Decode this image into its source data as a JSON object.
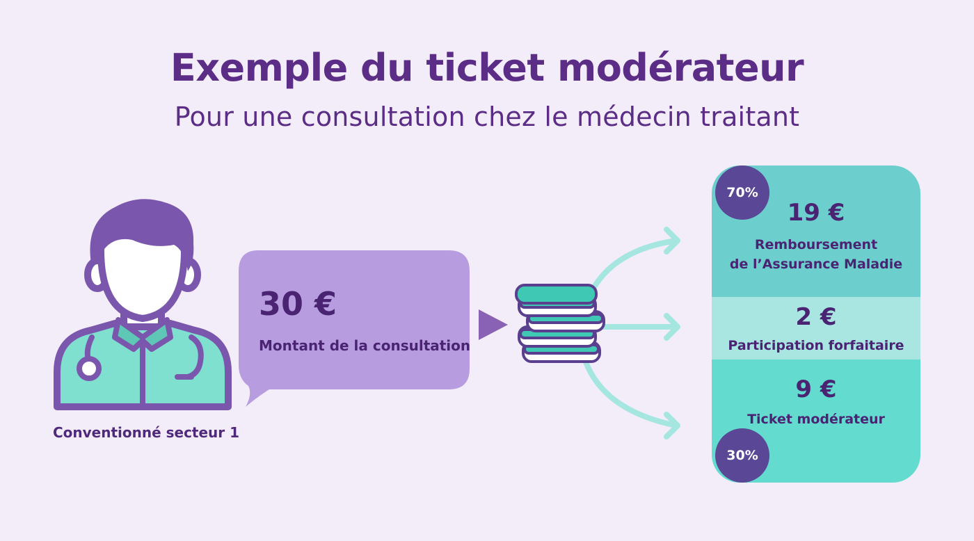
{
  "header": {
    "title": "Exemple du ticket modérateur",
    "subtitle": "Pour une consultation chez le médecin traitant"
  },
  "doctor": {
    "caption": "Conventionné secteur  1"
  },
  "consultation": {
    "amount": "30 €",
    "label": "Montant de la consultation"
  },
  "breakdown": {
    "reimbursement": {
      "percent": "70%",
      "amount": "19 €",
      "label_line1": "Remboursement",
      "label_line2": "de l’Assurance Maladie"
    },
    "flat_fee": {
      "amount": "2 €",
      "label": "Participation forfaitaire"
    },
    "ticket": {
      "amount": "9 €",
      "label": "Ticket modérateur",
      "percent": "30%"
    }
  },
  "colors": {
    "background": "#f3edf9",
    "title": "#5b2d86",
    "bubble": "#b79ddf",
    "teal_dark": "#6dcfcd",
    "teal_light": "#a9e6e2",
    "teal_mid": "#63dbcf",
    "badge": "#5a4796",
    "arrow": "#a6e6e0"
  }
}
